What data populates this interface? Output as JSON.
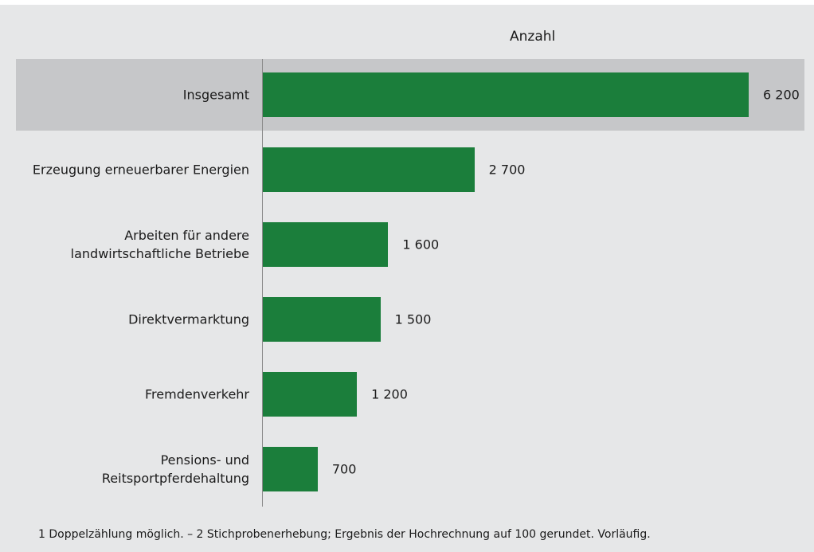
{
  "chart_data": {
    "type": "bar",
    "orientation": "horizontal",
    "value_axis_title": "Anzahl",
    "categories": [
      "Insgesamt",
      "Erzeugung erneuerbarer Energien",
      "Arbeiten für andere\nlandwirtschaftliche Betriebe",
      "Direktvermarktung",
      "Fremdenverkehr",
      "Pensions- und\nReitsportpferdehaltung"
    ],
    "values": [
      6200,
      2700,
      1600,
      1500,
      1200,
      700
    ],
    "value_labels": [
      "6 200",
      "2 700",
      "1 600",
      "1 500",
      "1 200",
      "700"
    ],
    "color": "#1b7e3b",
    "highlight": 0,
    "footnote": "1 Doppelzählung möglich. – 2 Stichprobenerhebung; Ergebnis der Hochrechnung auf 100 gerundet. Vorläufig."
  }
}
